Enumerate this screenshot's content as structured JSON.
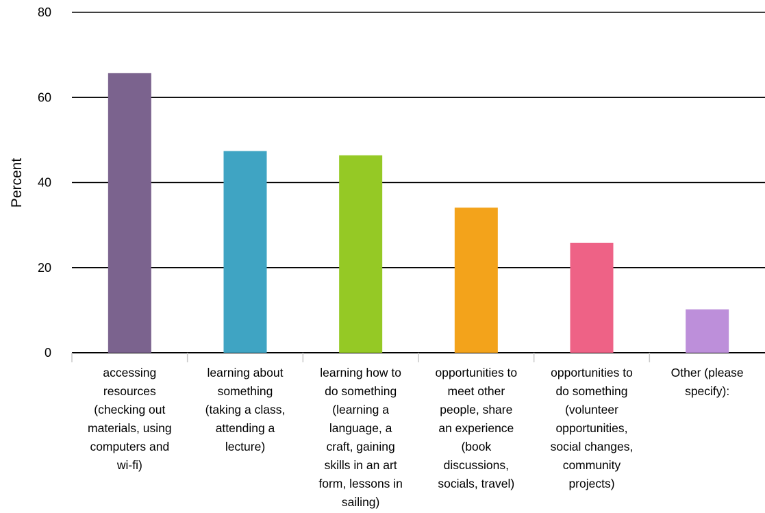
{
  "chart_data": {
    "type": "bar",
    "title": "",
    "xlabel": "",
    "ylabel": "Percent",
    "ylim": [
      0,
      80
    ],
    "yticks": [
      0,
      20,
      40,
      60,
      80
    ],
    "grid": true,
    "legend": "none",
    "categories": [
      "accessing\nresources\n(checking out\nmaterials, using\ncomputers and\nwi-fi)",
      "learning about\nsomething\n(taking a class,\nattending a\nlecture)",
      "learning how to\ndo something\n(learning a\nlanguage, a\ncraft, gaining\nskills in an art\nform, lessons in\nsailing)",
      "opportunities to\nmeet other\npeople, share\nan experience\n(book\ndiscussions,\nsocials, travel)",
      "opportunities to\ndo something\n(volunteer\nopportunities,\nsocial changes,\ncommunity\nprojects)",
      "Other (please\nspecify):"
    ],
    "values": [
      65.7,
      47.4,
      46.4,
      34.1,
      25.8,
      10.2
    ],
    "colors": [
      "#7b638e",
      "#3fa4c3",
      "#95c925",
      "#f3a31b",
      "#ee6286",
      "#bd8fda"
    ]
  }
}
